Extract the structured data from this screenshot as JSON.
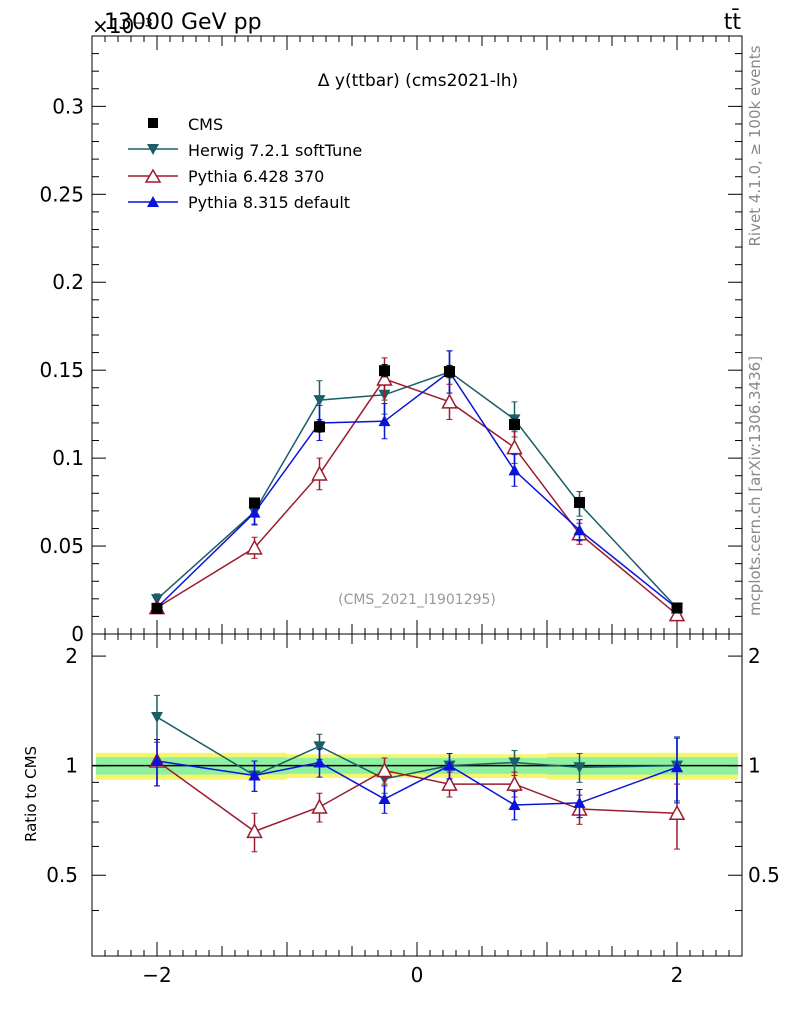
{
  "header": {
    "energy_label": "13000 GeV pp",
    "exponent_label": "×10⁻³",
    "process_label": "tt̄"
  },
  "side_labels": {
    "rivet": "Rivet 4.1.0, ≥ 100k events",
    "mcplots": "mcplots.cern.ch [arXiv:1306.3436]"
  },
  "chart_data": [
    {
      "type": "line",
      "panel": "main",
      "title": "Δ y(ttbar) (cms2021-lh)",
      "watermark": "(CMS_2021_I1901295)",
      "xlim": [
        -2.5,
        2.5
      ],
      "ylim": [
        0,
        0.34
      ],
      "yticks": [
        0,
        0.05,
        0.1,
        0.15,
        0.2,
        0.25,
        0.3
      ],
      "ytick_labels": [
        "0",
        "0.05",
        "0.1",
        "0.15",
        "0.2",
        "0.25",
        "0.3"
      ],
      "x": [
        -2.0,
        -1.25,
        -0.75,
        -0.25,
        0.25,
        0.75,
        1.25,
        2.0
      ],
      "series": [
        {
          "name": "CMS",
          "color": "#000000",
          "marker": "square",
          "line": false,
          "values": [
            0.0146,
            0.0745,
            0.1178,
            0.1497,
            0.1492,
            0.1191,
            0.0748,
            0.0148
          ],
          "errors": [
            0.0008,
            0.002,
            0.003,
            0.0035,
            0.0035,
            0.003,
            0.002,
            0.0008
          ]
        },
        {
          "name": "Herwig 7.2.1 softTune",
          "color": "#1b5e66",
          "marker": "triangle-down",
          "line": true,
          "values": [
            0.0198,
            0.0695,
            0.133,
            0.136,
            0.149,
            0.122,
            0.074,
            0.0148
          ],
          "errors": [
            0.003,
            0.007,
            0.011,
            0.011,
            0.012,
            0.01,
            0.007,
            0.0025
          ]
        },
        {
          "name": "Pythia 6.428 370",
          "color": "#9c1c2e",
          "marker": "triangle-open",
          "line": true,
          "values": [
            0.015,
            0.049,
            0.091,
            0.145,
            0.132,
            0.106,
            0.057,
            0.011
          ],
          "errors": [
            0.002,
            0.006,
            0.009,
            0.012,
            0.01,
            0.009,
            0.006,
            0.002
          ]
        },
        {
          "name": "Pythia 8.315 default",
          "color": "#0a14d9",
          "marker": "triangle-up",
          "line": true,
          "values": [
            0.015,
            0.069,
            0.12,
            0.121,
            0.149,
            0.093,
            0.059,
            0.0146
          ],
          "errors": [
            0.002,
            0.007,
            0.01,
            0.01,
            0.012,
            0.009,
            0.006,
            0.002
          ]
        }
      ]
    },
    {
      "type": "line",
      "panel": "ratio",
      "ylabel": "Ratio to CMS",
      "xlim": [
        -2.5,
        2.5
      ],
      "ylim": [
        0.3,
        2.3
      ],
      "yticks": [
        0.5,
        1,
        2
      ],
      "ytick_labels": [
        "0.5",
        "1",
        "2"
      ],
      "xticks": [
        -2,
        0,
        2
      ],
      "xtick_labels": [
        "−2",
        "0",
        "2"
      ],
      "x": [
        -2.0,
        -1.25,
        -0.75,
        -0.25,
        0.25,
        0.75,
        1.25,
        2.0
      ],
      "band_edges": [
        -2.5,
        -1.5,
        -1.0,
        -0.5,
        0.0,
        0.5,
        1.0,
        1.5,
        2.5
      ],
      "band_inner": [
        0.055,
        0.055,
        0.05,
        0.05,
        0.05,
        0.05,
        0.055,
        0.055
      ],
      "band_outer": [
        0.085,
        0.085,
        0.075,
        0.075,
        0.075,
        0.075,
        0.085,
        0.085
      ],
      "series": [
        {
          "name": "Herwig 7.2.1 softTune",
          "color": "#1b5e66",
          "marker": "triangle-down",
          "values": [
            1.36,
            0.94,
            1.13,
            0.92,
            1.0,
            1.02,
            0.99,
            1.0
          ],
          "errors": [
            0.2,
            0.09,
            0.09,
            0.08,
            0.08,
            0.08,
            0.09,
            0.2
          ]
        },
        {
          "name": "Pythia 6.428 370",
          "color": "#9c1c2e",
          "marker": "triangle-open",
          "values": [
            1.03,
            0.66,
            0.77,
            0.97,
            0.89,
            0.89,
            0.76,
            0.74
          ],
          "errors": [
            0.15,
            0.08,
            0.07,
            0.08,
            0.07,
            0.07,
            0.07,
            0.15
          ]
        },
        {
          "name": "Pythia 8.315 default",
          "color": "#0a14d9",
          "marker": "triangle-up",
          "values": [
            1.03,
            0.94,
            1.02,
            0.81,
            1.0,
            0.78,
            0.79,
            0.99
          ],
          "errors": [
            0.15,
            0.09,
            0.09,
            0.07,
            0.08,
            0.07,
            0.07,
            0.2
          ]
        }
      ]
    }
  ]
}
